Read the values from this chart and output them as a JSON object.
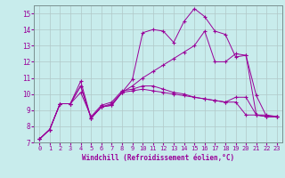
{
  "xlabel": "Windchill (Refroidissement éolien,°C)",
  "bg_color": "#c8ecec",
  "line_color": "#990099",
  "grid_color": "#b0c8c8",
  "xlim": [
    -0.5,
    23.5
  ],
  "ylim": [
    7,
    15.5
  ],
  "yticks": [
    7,
    8,
    9,
    10,
    11,
    12,
    13,
    14,
    15
  ],
  "xticks": [
    0,
    1,
    2,
    3,
    4,
    5,
    6,
    7,
    8,
    9,
    10,
    11,
    12,
    13,
    14,
    15,
    16,
    17,
    18,
    19,
    20,
    21,
    22,
    23
  ],
  "line1_x": [
    0,
    1,
    2,
    3,
    4,
    5,
    6,
    7,
    8,
    9,
    10,
    11,
    12,
    13,
    14,
    15,
    16,
    17,
    18,
    19,
    20,
    21,
    22,
    23
  ],
  "line1_y": [
    7.2,
    7.8,
    9.4,
    9.4,
    10.5,
    8.5,
    9.2,
    9.3,
    10.1,
    10.2,
    10.3,
    10.2,
    10.1,
    10.0,
    9.9,
    9.8,
    9.7,
    9.6,
    9.5,
    9.5,
    8.7,
    8.7,
    8.6,
    8.6
  ],
  "line2_x": [
    0,
    1,
    2,
    3,
    4,
    5,
    6,
    7,
    8,
    9,
    10,
    11,
    12,
    13,
    14,
    15,
    16,
    17,
    18,
    19,
    20,
    21,
    22,
    23
  ],
  "line2_y": [
    7.2,
    7.8,
    9.4,
    9.4,
    10.1,
    8.6,
    9.3,
    9.5,
    10.2,
    10.3,
    10.5,
    10.5,
    10.3,
    10.1,
    10.0,
    9.8,
    9.7,
    9.6,
    9.5,
    9.8,
    9.8,
    8.7,
    8.6,
    8.6
  ],
  "line3_x": [
    0,
    1,
    2,
    3,
    4,
    5,
    6,
    7,
    8,
    9,
    10,
    11,
    12,
    13,
    14,
    15,
    16,
    17,
    18,
    19,
    20,
    21,
    22,
    23
  ],
  "line3_y": [
    7.2,
    7.8,
    9.4,
    9.4,
    10.8,
    8.5,
    9.2,
    9.4,
    10.1,
    10.9,
    13.8,
    14.0,
    13.9,
    13.2,
    14.5,
    15.3,
    14.8,
    13.9,
    13.7,
    12.3,
    12.4,
    9.9,
    8.6,
    8.6
  ],
  "line4_x": [
    0,
    1,
    2,
    3,
    4,
    5,
    6,
    7,
    8,
    9,
    10,
    11,
    12,
    13,
    14,
    15,
    16,
    17,
    18,
    19,
    20,
    21,
    22,
    23
  ],
  "line4_y": [
    7.2,
    7.8,
    9.4,
    9.4,
    10.5,
    8.5,
    9.2,
    9.3,
    10.1,
    10.5,
    11.0,
    11.4,
    11.8,
    12.2,
    12.6,
    13.0,
    13.9,
    12.0,
    12.0,
    12.5,
    12.4,
    8.7,
    8.7,
    8.6
  ]
}
